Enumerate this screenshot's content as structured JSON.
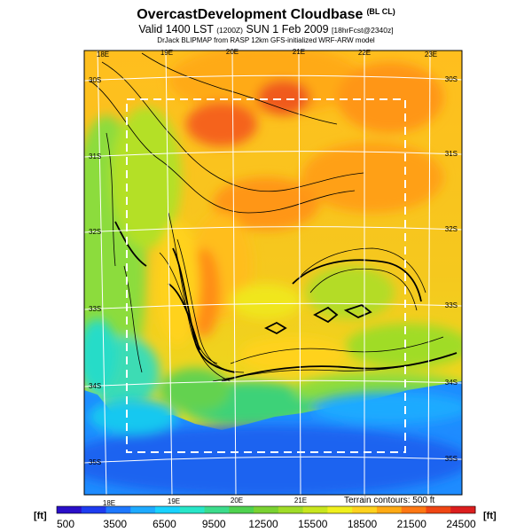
{
  "header": {
    "title": "OvercastDevelopment Cloudbase",
    "title_suffix": "(BL CL)",
    "valid_line": "Valid 1400 LST",
    "valid_code": "(1200Z)",
    "valid_date": "SUN 1 Feb 2009",
    "forecast_code": "[18hrFcst@2340z]",
    "source_line": "DrJack BLIPMAP from RASP 12km GFS-initialized WRF-ARW model"
  },
  "map": {
    "lon_labels_top": [
      "18E",
      "19E",
      "20E",
      "21E",
      "22E",
      "23E"
    ],
    "lon_labels_bottom": [
      "18E",
      "19E",
      "20E",
      "21E"
    ],
    "lat_labels_left": [
      "30S",
      "31S",
      "32S",
      "33S",
      "34S",
      "35S"
    ],
    "lat_labels_right": [
      "30S",
      "31S",
      "32S",
      "33S",
      "34S",
      "35S"
    ],
    "terrain_note": "Terrain contours: 500 ft"
  },
  "colorbar": {
    "unit_left": "[ft]",
    "unit_right": "[ft]",
    "ticks": [
      "500",
      "3500",
      "6500",
      "9500",
      "12500",
      "15500",
      "18500",
      "21500",
      "24500"
    ],
    "colors": [
      "#2a0fc8",
      "#1e3cf0",
      "#1e78ff",
      "#1eaaff",
      "#19d2ff",
      "#28e6c8",
      "#3cdc8c",
      "#50d250",
      "#7ad232",
      "#a0dc28",
      "#c8e61e",
      "#f0f01e",
      "#ffd21e",
      "#ffaa14",
      "#ff7814",
      "#f04614",
      "#dc1e1e"
    ]
  },
  "legend_colors": {
    "sea": "#ffffff",
    "grid": "#ffffff",
    "domain_box": "#ffffff",
    "contour": "#000000"
  }
}
